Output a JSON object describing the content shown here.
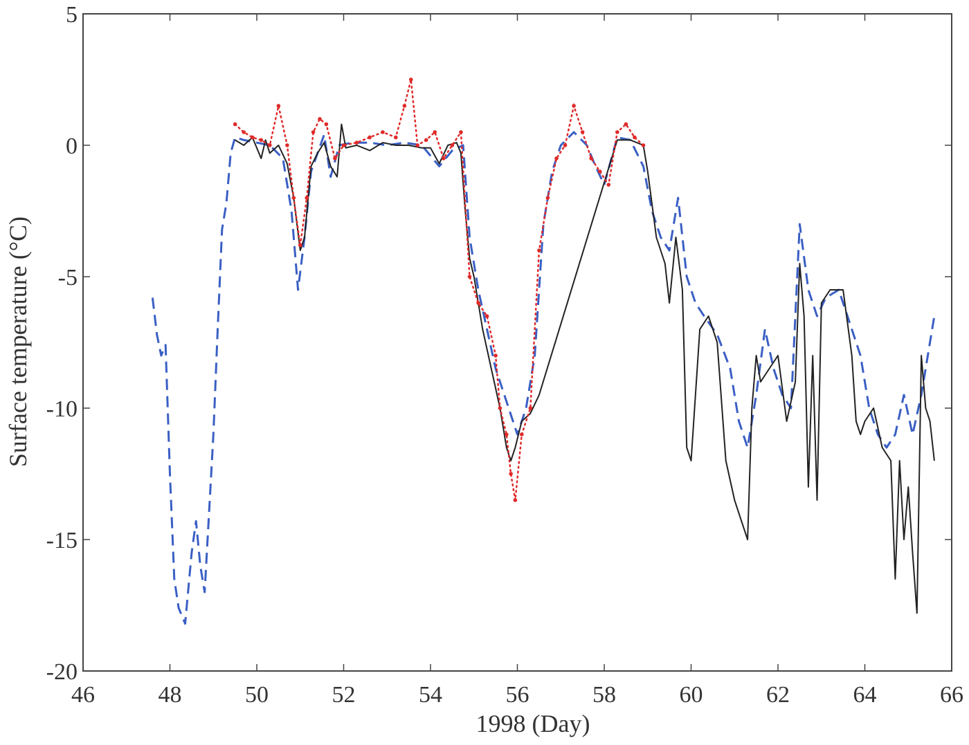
{
  "chart_data": {
    "type": "line",
    "title": "",
    "xlabel": "1998 (Day)",
    "ylabel": "Surface temperature (°C)",
    "xlim": [
      46,
      66
    ],
    "ylim": [
      -20,
      5
    ],
    "xticks": [
      46,
      48,
      50,
      52,
      54,
      56,
      58,
      60,
      62,
      64,
      66
    ],
    "yticks": [
      5,
      0,
      -5,
      -10,
      -15,
      -20
    ],
    "grid": false,
    "legend": "none",
    "series": [
      {
        "style": "dashed",
        "color": "#3a5fc4",
        "x": [
          47.6,
          47.7,
          47.8,
          47.9,
          48.0,
          48.1,
          48.2,
          48.35,
          48.5,
          48.6,
          48.7,
          48.8,
          48.9,
          49.0,
          49.1,
          49.2,
          49.3,
          49.4,
          49.5,
          49.7,
          50.0,
          50.3,
          50.6,
          50.8,
          50.95,
          51.1,
          51.25,
          51.4,
          51.55,
          51.7,
          51.9,
          52.2,
          52.6,
          53.0,
          53.4,
          53.8,
          54.2,
          54.5,
          54.75,
          54.9,
          55.1,
          55.3,
          55.5,
          55.7,
          55.9,
          56.0,
          56.2,
          56.4,
          56.6,
          56.8,
          57.0,
          57.3,
          57.6,
          57.8,
          58.0,
          58.3,
          58.6,
          58.9,
          59.1,
          59.3,
          59.5,
          59.7,
          59.9,
          60.1,
          60.3,
          60.6,
          60.9,
          61.1,
          61.3,
          61.5,
          61.7,
          61.9,
          62.1,
          62.3,
          62.5,
          62.7,
          62.9,
          63.1,
          63.4,
          63.7,
          63.9,
          64.1,
          64.3,
          64.5,
          64.7,
          64.9,
          65.1,
          65.3,
          65.5,
          65.6
        ],
        "y": [
          -5.8,
          -7.2,
          -8.0,
          -7.6,
          -12.5,
          -16.5,
          -17.6,
          -18.2,
          -15.5,
          -14.3,
          -16.0,
          -17.0,
          -14.0,
          -11.0,
          -7.0,
          -3.2,
          -2.2,
          -0.3,
          0.3,
          0.2,
          0.1,
          0.0,
          -0.5,
          -2.5,
          -5.5,
          -3.5,
          -1.0,
          -0.3,
          0.4,
          -1.2,
          0.0,
          0.1,
          0.1,
          0.0,
          0.1,
          0.0,
          -0.8,
          -0.2,
          0.0,
          -3.5,
          -5.5,
          -7.0,
          -8.5,
          -9.5,
          -10.5,
          -11.0,
          -10.0,
          -8.0,
          -3.0,
          -1.0,
          0.0,
          0.5,
          0.0,
          -0.8,
          -1.5,
          0.3,
          0.2,
          -0.8,
          -2.5,
          -3.5,
          -4.0,
          -2.0,
          -5.0,
          -6.0,
          -6.5,
          -7.2,
          -8.5,
          -10.5,
          -11.5,
          -9.5,
          -7.0,
          -8.5,
          -9.5,
          -10.0,
          -3.0,
          -5.5,
          -6.5,
          -5.8,
          -5.5,
          -7.0,
          -8.0,
          -10.0,
          -11.0,
          -11.5,
          -11.0,
          -9.5,
          -11.0,
          -9.5,
          -7.5,
          -6.5
        ]
      },
      {
        "style": "solid",
        "color": "#222222",
        "x": [
          49.5,
          49.7,
          49.9,
          50.1,
          50.2,
          50.3,
          50.5,
          50.7,
          50.85,
          51.0,
          51.1,
          51.25,
          51.4,
          51.55,
          51.7,
          51.85,
          51.95,
          52.05,
          52.3,
          52.6,
          52.9,
          53.2,
          53.5,
          53.8,
          54.0,
          54.2,
          54.4,
          54.6,
          54.7,
          54.8,
          54.9,
          55.0,
          55.2,
          55.4,
          55.6,
          55.75,
          55.85,
          55.95,
          56.1,
          56.3,
          56.5,
          58.3,
          58.6,
          58.9,
          59.0,
          59.2,
          59.4,
          59.5,
          59.65,
          59.8,
          59.9,
          60.0,
          60.2,
          60.4,
          60.6,
          60.8,
          61.0,
          61.2,
          61.3,
          61.4,
          61.5,
          61.6,
          61.8,
          62.0,
          62.2,
          62.4,
          62.5,
          62.6,
          62.7,
          62.8,
          62.9,
          63.0,
          63.2,
          63.5,
          63.7,
          63.8,
          63.9,
          64.0,
          64.2,
          64.4,
          64.6,
          64.7,
          64.8,
          64.9,
          65.0,
          65.1,
          65.2,
          65.3,
          65.4,
          65.5,
          65.6
        ],
        "y": [
          0.2,
          0.0,
          0.3,
          -0.5,
          0.2,
          -0.3,
          0.0,
          -0.7,
          -2.0,
          -4.0,
          -3.5,
          -0.8,
          -0.3,
          0.1,
          -0.8,
          -1.2,
          0.8,
          -0.1,
          0.0,
          -0.2,
          0.1,
          0.0,
          0.0,
          -0.1,
          -0.1,
          -0.7,
          0.0,
          0.1,
          -0.3,
          -2.5,
          -4.3,
          -5.0,
          -7.0,
          -8.5,
          -10.0,
          -11.5,
          -12.0,
          -11.5,
          -10.5,
          -10.2,
          -9.5,
          0.2,
          0.2,
          0.0,
          -1.0,
          -3.5,
          -4.5,
          -6.0,
          -3.5,
          -5.5,
          -11.5,
          -12.0,
          -7.0,
          -6.5,
          -7.5,
          -12.0,
          -13.5,
          -14.5,
          -15.0,
          -10.0,
          -8.0,
          -9.0,
          -8.5,
          -8.0,
          -10.5,
          -9.0,
          -4.5,
          -6.5,
          -13.0,
          -8.0,
          -13.5,
          -6.0,
          -5.5,
          -5.5,
          -8.0,
          -10.5,
          -11.0,
          -10.5,
          -10.0,
          -11.5,
          -12.0,
          -16.5,
          -12.0,
          -15.0,
          -13.0,
          -15.5,
          -17.8,
          -8.0,
          -10.0,
          -10.5,
          -12.0
        ]
      },
      {
        "style": "dotted",
        "color": "#e02a2a",
        "x": [
          49.5,
          49.7,
          49.9,
          50.1,
          50.3,
          50.5,
          50.7,
          50.85,
          51.0,
          51.15,
          51.3,
          51.45,
          51.6,
          51.8,
          52.0,
          52.3,
          52.6,
          52.9,
          53.2,
          53.4,
          53.55,
          53.7,
          53.9,
          54.1,
          54.3,
          54.5,
          54.7,
          54.9,
          55.1,
          55.3,
          55.5,
          55.6,
          55.75,
          55.85,
          55.95,
          56.1,
          56.3,
          56.5,
          56.7,
          56.9,
          57.1,
          57.3,
          57.5,
          57.7,
          57.9,
          58.1,
          58.3,
          58.5,
          58.7,
          58.9
        ],
        "y": [
          0.8,
          0.5,
          0.3,
          0.2,
          0.0,
          1.5,
          0.0,
          -2.0,
          -3.8,
          -2.0,
          0.5,
          1.0,
          0.8,
          -0.5,
          0.0,
          0.1,
          0.3,
          0.5,
          0.3,
          1.5,
          2.5,
          0.0,
          0.2,
          0.5,
          -0.5,
          0.0,
          0.5,
          -5.0,
          -6.0,
          -6.5,
          -8.0,
          -10.0,
          -11.0,
          -12.5,
          -13.5,
          -11.0,
          -10.0,
          -4.0,
          -2.0,
          -0.5,
          0.0,
          1.5,
          0.5,
          -0.5,
          -1.0,
          -1.5,
          0.5,
          0.8,
          0.3,
          0.0
        ]
      }
    ]
  }
}
